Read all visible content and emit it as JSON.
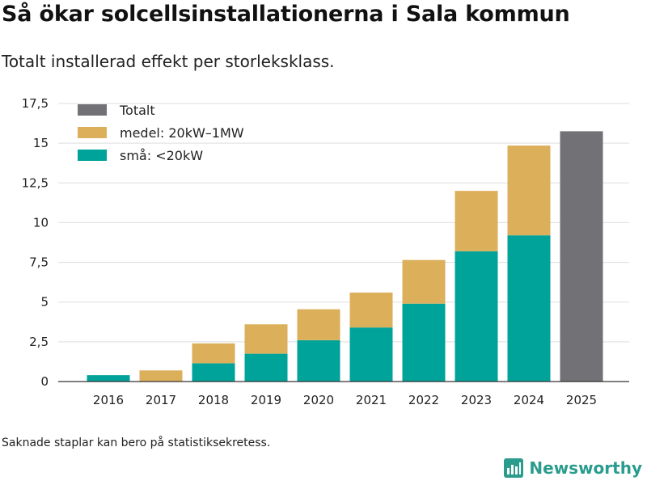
{
  "title": "Så ökar solcellsinstallationerna i Sala kommun",
  "subtitle": "Totalt installerad effekt per storleksklass.",
  "footnote": "Saknade staplar kan bero på statistiksekretess.",
  "brand": {
    "name": "Newsworthy",
    "icon": "newsworthy-logo-icon",
    "color": "#2a9c8e"
  },
  "chart_data": {
    "type": "bar",
    "stacked": true,
    "categories": [
      "2016",
      "2017",
      "2018",
      "2019",
      "2020",
      "2021",
      "2022",
      "2023",
      "2024",
      "2025"
    ],
    "series": [
      {
        "name": "små: <20kW",
        "color": "#00a39a",
        "values": [
          0.4,
          null,
          1.15,
          1.75,
          2.6,
          3.4,
          4.9,
          8.2,
          9.2,
          null
        ]
      },
      {
        "name": "medel: 20kW–1MW",
        "color": "#dcaf5b",
        "values": [
          null,
          0.7,
          1.25,
          1.85,
          1.95,
          2.2,
          2.75,
          3.8,
          5.65,
          null
        ]
      },
      {
        "name": "Totalt",
        "color": "#717176",
        "values": [
          null,
          null,
          null,
          null,
          null,
          null,
          null,
          null,
          null,
          15.75
        ]
      }
    ],
    "legend_order": [
      "Totalt",
      "medel: 20kW–1MW",
      "små: <20kW"
    ],
    "legend_position": "top-left",
    "yticks": [
      0,
      2.5,
      5,
      7.5,
      10,
      12.5,
      15,
      17.5
    ],
    "ytick_labels": [
      "0",
      "2,5",
      "5",
      "7,5",
      "10",
      "12,5",
      "15",
      "17,5"
    ],
    "ylim": [
      0,
      17.5
    ],
    "xlabel": "",
    "ylabel": "",
    "grid": true
  }
}
